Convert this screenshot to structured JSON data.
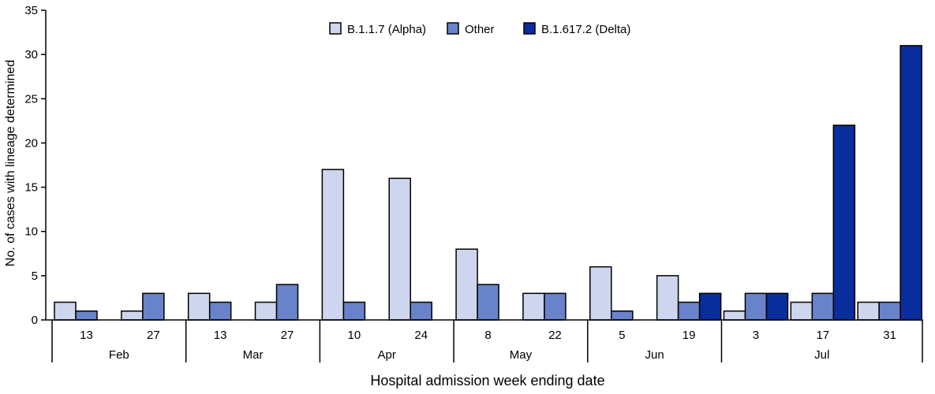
{
  "chart_data": {
    "type": "bar",
    "xlabel": "Hospital admission week ending date",
    "ylabel": "No. of cases with lineage determined",
    "ylim": [
      0,
      35
    ],
    "yticks": [
      0,
      5,
      10,
      15,
      20,
      25,
      30,
      35
    ],
    "grid": false,
    "legend_position": "top-center",
    "categories": [
      "13",
      "27",
      "13",
      "27",
      "10",
      "24",
      "8",
      "22",
      "5",
      "19",
      "3",
      "17",
      "31"
    ],
    "months": [
      {
        "label": "Feb",
        "weeks": 2
      },
      {
        "label": "Mar",
        "weeks": 2
      },
      {
        "label": "Apr",
        "weeks": 2
      },
      {
        "label": "May",
        "weeks": 2
      },
      {
        "label": "Jun",
        "weeks": 2
      },
      {
        "label": "Jul",
        "weeks": 3
      }
    ],
    "series": [
      {
        "name": "B.1.1.7 (Alpha)",
        "color": "#cdd6ee",
        "values": [
          2,
          1,
          3,
          2,
          17,
          16,
          8,
          3,
          6,
          5,
          1,
          2,
          2
        ]
      },
      {
        "name": "Other",
        "color": "#6883c9",
        "values": [
          1,
          3,
          2,
          4,
          2,
          2,
          4,
          3,
          1,
          2,
          3,
          3,
          2
        ]
      },
      {
        "name": "B.1.617.2 (Delta)",
        "color": "#0a2d9e",
        "values": [
          0,
          0,
          0,
          0,
          0,
          0,
          0,
          0,
          0,
          3,
          3,
          22,
          31
        ]
      }
    ]
  }
}
